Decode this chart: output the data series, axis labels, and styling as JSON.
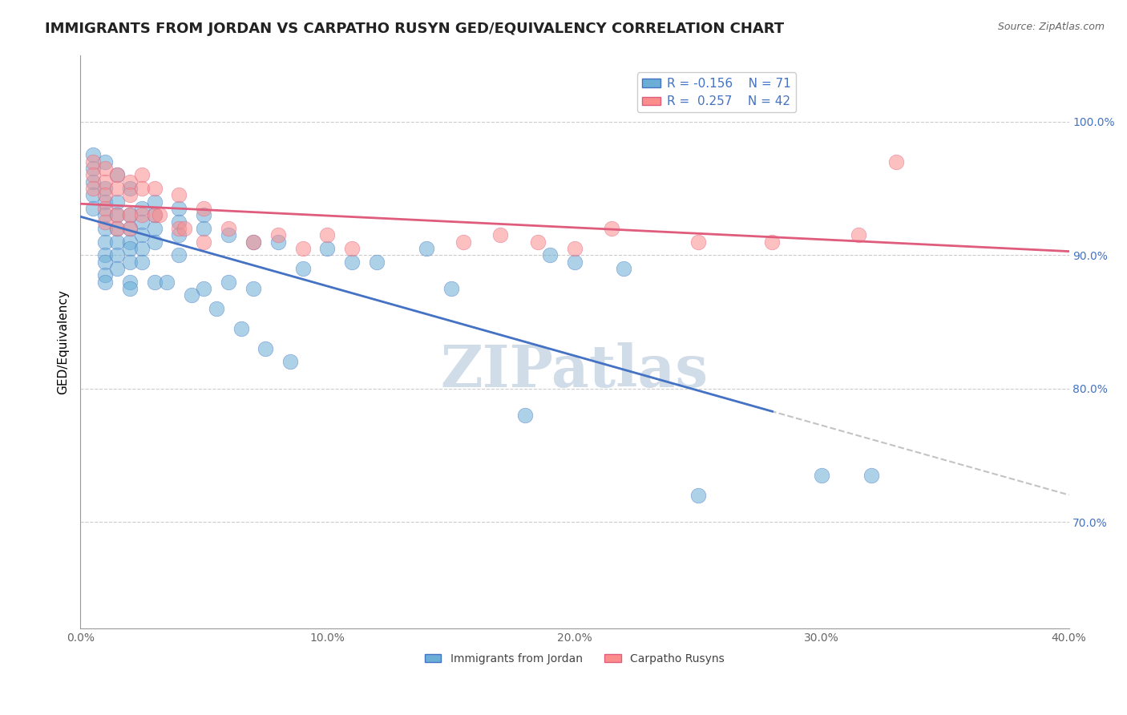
{
  "title": "IMMIGRANTS FROM JORDAN VS CARPATHO RUSYN GED/EQUIVALENCY CORRELATION CHART",
  "source": "Source: ZipAtlas.com",
  "xlabel": "",
  "ylabel": "GED/Equivalency",
  "xlim": [
    0.0,
    0.4
  ],
  "ylim": [
    0.62,
    1.05
  ],
  "x_ticks": [
    0.0,
    0.1,
    0.2,
    0.3,
    0.4
  ],
  "x_tick_labels": [
    "0.0%",
    "10.0%",
    "20.0%",
    "30.0%",
    "40.0%"
  ],
  "y_ticks_right": [
    0.7,
    0.8,
    0.9,
    1.0
  ],
  "y_tick_labels_right": [
    "70.0%",
    "80.0%",
    "90.0%",
    "100.0%"
  ],
  "legend_r1": "R = -0.156",
  "legend_n1": "N = 71",
  "legend_r2": "R =  0.257",
  "legend_n2": "N = 42",
  "series1_color": "#6baed6",
  "series2_color": "#fc8d8d",
  "series1_label": "Immigrants from Jordan",
  "series2_label": "Carpatho Rusyns",
  "trendline1_color": "#4472c4",
  "trendline2_color": "#e05c7c",
  "dashed_line_color": "#aaaaaa",
  "watermark": "ZIPatlas",
  "watermark_color": "#d0dde8",
  "background_color": "#ffffff",
  "title_fontsize": 13,
  "axis_label_fontsize": 11,
  "tick_fontsize": 10,
  "legend_fontsize": 11,
  "series1_x": [
    0.01,
    0.01,
    0.01,
    0.01,
    0.01,
    0.01,
    0.01,
    0.01,
    0.01,
    0.01,
    0.015,
    0.015,
    0.015,
    0.015,
    0.015,
    0.015,
    0.015,
    0.02,
    0.02,
    0.02,
    0.02,
    0.02,
    0.02,
    0.02,
    0.02,
    0.025,
    0.025,
    0.025,
    0.025,
    0.025,
    0.03,
    0.03,
    0.03,
    0.03,
    0.03,
    0.04,
    0.04,
    0.04,
    0.04,
    0.05,
    0.05,
    0.05,
    0.06,
    0.06,
    0.07,
    0.07,
    0.08,
    0.09,
    0.1,
    0.11,
    0.12,
    0.14,
    0.15,
    0.18,
    0.19,
    0.2,
    0.22,
    0.25,
    0.3,
    0.32,
    0.005,
    0.005,
    0.005,
    0.005,
    0.005,
    0.035,
    0.045,
    0.055,
    0.065,
    0.075,
    0.085
  ],
  "series1_y": [
    0.97,
    0.95,
    0.94,
    0.93,
    0.92,
    0.91,
    0.9,
    0.895,
    0.885,
    0.88,
    0.96,
    0.94,
    0.93,
    0.92,
    0.91,
    0.9,
    0.89,
    0.95,
    0.93,
    0.92,
    0.91,
    0.905,
    0.895,
    0.88,
    0.875,
    0.935,
    0.925,
    0.915,
    0.905,
    0.895,
    0.94,
    0.93,
    0.92,
    0.91,
    0.88,
    0.935,
    0.925,
    0.915,
    0.9,
    0.93,
    0.92,
    0.875,
    0.915,
    0.88,
    0.91,
    0.875,
    0.91,
    0.89,
    0.905,
    0.895,
    0.895,
    0.905,
    0.875,
    0.78,
    0.9,
    0.895,
    0.89,
    0.72,
    0.735,
    0.735,
    0.975,
    0.965,
    0.955,
    0.945,
    0.935,
    0.88,
    0.87,
    0.86,
    0.845,
    0.83,
    0.82
  ],
  "series2_x": [
    0.01,
    0.01,
    0.01,
    0.01,
    0.01,
    0.015,
    0.015,
    0.015,
    0.015,
    0.02,
    0.02,
    0.02,
    0.02,
    0.025,
    0.025,
    0.025,
    0.03,
    0.03,
    0.04,
    0.04,
    0.05,
    0.05,
    0.06,
    0.07,
    0.08,
    0.09,
    0.1,
    0.11,
    0.155,
    0.17,
    0.185,
    0.2,
    0.215,
    0.25,
    0.28,
    0.315,
    0.005,
    0.005,
    0.005,
    0.032,
    0.042,
    0.33
  ],
  "series2_y": [
    0.965,
    0.955,
    0.945,
    0.935,
    0.925,
    0.96,
    0.95,
    0.93,
    0.92,
    0.955,
    0.945,
    0.93,
    0.92,
    0.96,
    0.95,
    0.93,
    0.95,
    0.93,
    0.945,
    0.92,
    0.935,
    0.91,
    0.92,
    0.91,
    0.915,
    0.905,
    0.915,
    0.905,
    0.91,
    0.915,
    0.91,
    0.905,
    0.92,
    0.91,
    0.91,
    0.915,
    0.97,
    0.96,
    0.95,
    0.93,
    0.92,
    0.97
  ]
}
